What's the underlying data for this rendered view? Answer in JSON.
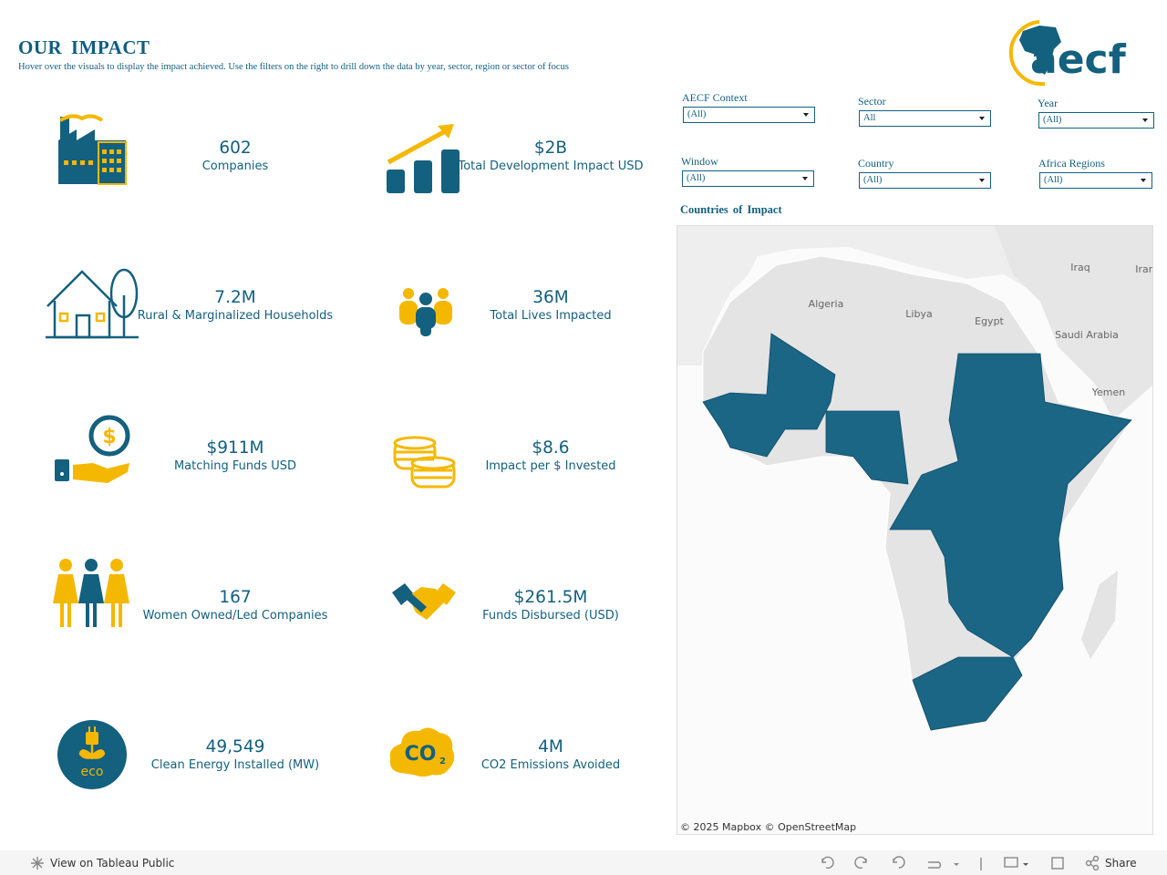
{
  "header": {
    "title": "OUR IMPACT",
    "subtitle": "Hover over the visuals to display the impact achieved. Use the filters on the right to drill down the data by year, sector, region or sector of focus"
  },
  "logo": "aecf",
  "metrics": [
    {
      "value": "602",
      "label": "Companies"
    },
    {
      "value": "$2B",
      "label": "Total Development Impact USD"
    },
    {
      "value": "7.2M",
      "label": "Rural & Marginalized Households"
    },
    {
      "value": "36M",
      "label": "Total Lives Impacted"
    },
    {
      "value": "$911M",
      "label": "Matching Funds USD"
    },
    {
      "value": "$8.6",
      "label": "Impact per $ Invested"
    },
    {
      "value": "167",
      "label": "Women Owned/Led Companies"
    },
    {
      "value": "$261.5M",
      "label": "Funds Disbursed (USD)"
    },
    {
      "value": "49,549",
      "label": "Clean Energy Installed (MW)"
    },
    {
      "value": "4M",
      "label": "CO2 Emissions Avoided"
    }
  ],
  "filters": [
    {
      "label": "AECF Context",
      "value": "(All)"
    },
    {
      "label": "Sector",
      "value": "All"
    },
    {
      "label": "Year",
      "value": "(All)"
    },
    {
      "label": "Window",
      "value": "(All)"
    },
    {
      "label": "Country",
      "value": "(All)"
    },
    {
      "label": "Africa Regions",
      "value": "(All)"
    }
  ],
  "map": {
    "title": "Countries of Impact",
    "labels": [
      "Algeria",
      "Libya",
      "Egypt",
      "Saudi Arabia",
      "Yemen",
      "Iraq",
      "Iran"
    ],
    "attribution": "© 2025 Mapbox © OpenStreetMap"
  },
  "footer": {
    "view": "View on Tableau Public",
    "share": "Share"
  }
}
